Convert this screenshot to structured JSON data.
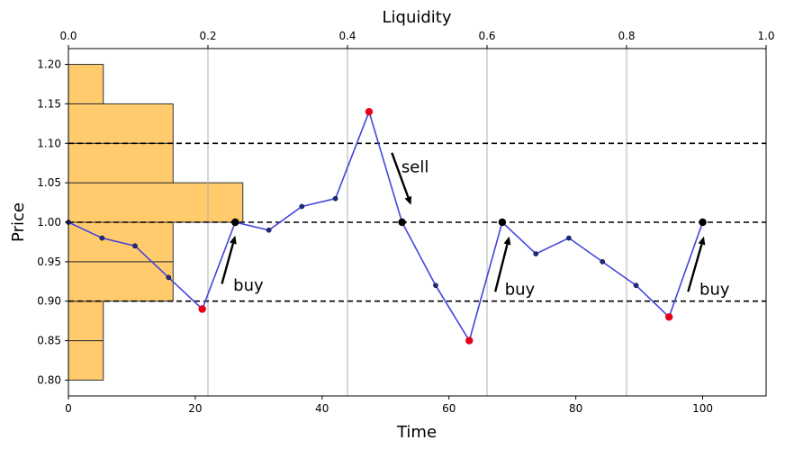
{
  "chart_data": {
    "type": "line",
    "xlabel": "Time",
    "ylabel": "Price",
    "top_xlabel": "Liquidity",
    "xlim": [
      0,
      110
    ],
    "ylim": [
      0.78,
      1.22
    ],
    "top_xlim": [
      0,
      1.0
    ],
    "x_ticks": [
      0,
      20,
      40,
      60,
      80,
      100
    ],
    "y_ticks": [
      0.8,
      0.85,
      0.9,
      0.95,
      1.0,
      1.05,
      1.1,
      1.15,
      1.2
    ],
    "top_ticks": [
      0.0,
      0.2,
      0.4,
      0.6,
      0.8,
      1.0
    ],
    "x_tick_labels": [
      "0",
      "20",
      "40",
      "60",
      "80",
      "100"
    ],
    "y_tick_labels": [
      "0.80",
      "0.85",
      "0.90",
      "0.95",
      "1.00",
      "1.05",
      "1.10",
      "1.15",
      "1.20"
    ],
    "top_tick_labels": [
      "0.0",
      "0.2",
      "0.4",
      "0.6",
      "0.8",
      "1.0"
    ],
    "vertical_grid_at_top_ticks": [
      0.2,
      0.4,
      0.6,
      0.8
    ],
    "horizontal_reference_lines": [
      0.9,
      1.0,
      1.1
    ],
    "line_color": "#4444dd",
    "marker_color": "#1f2a8c",
    "event_low_high_color": "#e8001c",
    "event_reset_color": "#000000",
    "histogram_color": "#ffc864",
    "price_series": {
      "x": [
        0,
        5.3,
        10.5,
        15.8,
        21.1,
        26.3,
        31.6,
        36.8,
        42.1,
        47.4,
        52.6,
        57.9,
        63.2,
        68.4,
        73.7,
        78.9,
        84.2,
        89.5,
        94.7,
        100
      ],
      "y": [
        1.0,
        0.98,
        0.97,
        0.93,
        0.89,
        1.0,
        0.99,
        1.02,
        1.03,
        1.14,
        1.0,
        0.92,
        0.85,
        1.0,
        0.96,
        0.98,
        0.95,
        0.92,
        0.88,
        1.0
      ]
    },
    "red_points": {
      "x": [
        21.1,
        47.4,
        63.2,
        94.7
      ],
      "y": [
        0.89,
        1.14,
        0.85,
        0.88
      ]
    },
    "black_points": {
      "x": [
        26.3,
        52.6,
        68.4,
        100
      ],
      "y": [
        1.0,
        1.0,
        1.0,
        1.0
      ]
    },
    "liquidity_histogram": [
      {
        "from": 0.8,
        "to": 0.85,
        "liquidity": 0.05
      },
      {
        "from": 0.85,
        "to": 0.9,
        "liquidity": 0.05
      },
      {
        "from": 0.9,
        "to": 0.95,
        "liquidity": 0.15
      },
      {
        "from": 0.95,
        "to": 1.0,
        "liquidity": 0.15
      },
      {
        "from": 1.0,
        "to": 1.05,
        "liquidity": 0.25
      },
      {
        "from": 1.05,
        "to": 1.1,
        "liquidity": 0.15
      },
      {
        "from": 1.1,
        "to": 1.15,
        "liquidity": 0.15
      },
      {
        "from": 1.15,
        "to": 1.2,
        "liquidity": 0.05
      }
    ],
    "annotations": [
      {
        "text": "buy",
        "arrow_from": [
          24.2,
          0.922
        ],
        "arrow_to": [
          26.3,
          0.983
        ],
        "text_at": [
          26.0,
          0.92
        ]
      },
      {
        "text": "sell",
        "arrow_from": [
          51.0,
          1.088
        ],
        "arrow_to": [
          54.0,
          1.022
        ],
        "text_at": [
          52.5,
          1.07
        ]
      },
      {
        "text": "buy",
        "arrow_from": [
          67.3,
          0.912
        ],
        "arrow_to": [
          69.5,
          0.982
        ],
        "text_at": [
          68.8,
          0.915
        ]
      },
      {
        "text": "buy",
        "arrow_from": [
          97.7,
          0.912
        ],
        "arrow_to": [
          100.2,
          0.982
        ],
        "text_at": [
          99.5,
          0.915
        ]
      }
    ]
  }
}
